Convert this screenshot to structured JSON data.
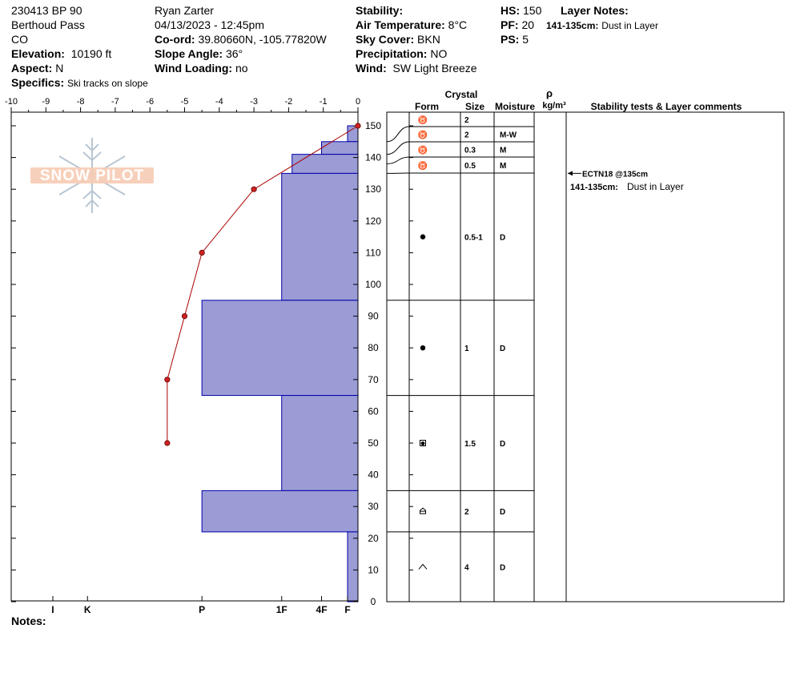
{
  "header": {
    "pit_name": "230413 BP 90",
    "location": "Berthoud Pass",
    "state": "CO",
    "elevation_label": "Elevation:",
    "elevation_value": "10190 ft",
    "aspect_label": "Aspect:",
    "aspect_value": "N",
    "specifics_label": "Specifics:",
    "specifics_value": "Ski tracks on slope",
    "observer": "Ryan Zarter",
    "datetime": "04/13/2023 - 12:45pm",
    "coord_label": "Co-ord:",
    "coord_value": "39.80660N, -105.77820W",
    "slope_label": "Slope Angle:",
    "slope_value": "36°",
    "wind_loading_label": "Wind Loading:",
    "wind_loading_value": "no",
    "stability_label": "Stability:",
    "stability_value": "",
    "air_temp_label": "Air Temperature:",
    "air_temp_value": "8°C",
    "sky_label": "Sky Cover:",
    "sky_value": "BKN",
    "precip_label": "Precipitation:",
    "precip_value": "NO",
    "wind_label": "Wind:",
    "wind_value": "SW Light Breeze",
    "hs_label": "HS:",
    "hs_value": "150",
    "pf_label": "PF:",
    "pf_value": "20",
    "ps_label": "PS:",
    "ps_value": "5",
    "layer_notes_label": "Layer Notes:",
    "layer_note_range": "141-135cm:",
    "layer_note_text": "Dust in Layer"
  },
  "logo": {
    "text": "SNOW PILOT"
  },
  "notes_label": "Notes:",
  "table": {
    "crystal_header": "Crystal",
    "form_header": "Form",
    "size_header": "Size",
    "moisture_header": "Moisture",
    "density_symbol": "ρ",
    "density_unit": "kg/m³",
    "comments_header": "Stability tests & Layer comments"
  },
  "comments": [
    {
      "text": "ECTN18 @135cm",
      "depth": 135,
      "arrow": true
    },
    {
      "range": "141-135cm:",
      "text": "Dust in Layer",
      "depth": 131
    }
  ],
  "colors": {
    "hardness_fill": "#9b9bd6",
    "hardness_stroke": "#0000aa",
    "temp_line": "#aa0000",
    "temp_point": "#cc2222"
  },
  "chart_data": {
    "type": "snow-profile",
    "temperature_axis": {
      "label": "",
      "range": [
        -10,
        0
      ],
      "ticks": [
        "-10",
        "-9",
        "-8",
        "-7",
        "-6",
        "-5",
        "-4",
        "-3",
        "-2",
        "-1",
        "0"
      ]
    },
    "height_axis": {
      "label": "",
      "range": [
        0,
        150
      ],
      "ticks": [
        "0",
        "10",
        "20",
        "30",
        "40",
        "50",
        "60",
        "70",
        "80",
        "90",
        "100",
        "110",
        "120",
        "130",
        "140",
        "150"
      ]
    },
    "hardness_scale": [
      "I",
      "K",
      "P",
      "1F",
      "4F",
      "F"
    ],
    "hardness_ticks": [
      {
        "label": "I",
        "value": 8.8
      },
      {
        "label": "K",
        "value": 7.8
      },
      {
        "label": "P",
        "value": 4.5
      },
      {
        "label": "1F",
        "value": 2.2
      },
      {
        "label": "4F",
        "value": 1.05
      },
      {
        "label": "F",
        "value": 0.3
      }
    ],
    "hardness_layers": [
      {
        "top": 150,
        "bottom": 145,
        "value": 0.3
      },
      {
        "top": 145,
        "bottom": 141,
        "value": 1.05
      },
      {
        "top": 141,
        "bottom": 135,
        "value": 1.9
      },
      {
        "top": 135,
        "bottom": 95,
        "value": 2.2
      },
      {
        "top": 95,
        "bottom": 65,
        "value": 4.5
      },
      {
        "top": 65,
        "bottom": 35,
        "value": 2.2
      },
      {
        "top": 35,
        "bottom": 22,
        "value": 4.5
      },
      {
        "top": 22,
        "bottom": 0,
        "value": 0.3
      }
    ],
    "temperature_profile": [
      {
        "height": 150,
        "temp": 0
      },
      {
        "height": 130,
        "temp": -3
      },
      {
        "height": 110,
        "temp": -4.5
      },
      {
        "height": 90,
        "temp": -5
      },
      {
        "height": 70,
        "temp": -5.5
      },
      {
        "height": 50,
        "temp": -5.5
      }
    ],
    "layers": [
      {
        "top": 150,
        "bottom": 145,
        "form": "decomposing",
        "size": "2",
        "moisture": ""
      },
      {
        "top": 145,
        "bottom": 141,
        "form": "decomposing",
        "size": "2",
        "moisture": "M-W"
      },
      {
        "top": 141,
        "bottom": 138,
        "form": "decomposing",
        "size": "0.3",
        "moisture": "M"
      },
      {
        "top": 138,
        "bottom": 135,
        "form": "decomposing",
        "size": "0.5",
        "moisture": "M"
      },
      {
        "top": 135,
        "bottom": 95,
        "form": "rounded",
        "size": "0.5-1",
        "moisture": "D"
      },
      {
        "top": 95,
        "bottom": 65,
        "form": "rounded",
        "size": "1",
        "moisture": "D"
      },
      {
        "top": 65,
        "bottom": 35,
        "form": "mixed",
        "size": "1.5",
        "moisture": "D"
      },
      {
        "top": 35,
        "bottom": 22,
        "form": "faceted",
        "size": "2",
        "moisture": "D"
      },
      {
        "top": 22,
        "bottom": 0,
        "form": "depth-hoar",
        "size": "4",
        "moisture": "D"
      }
    ]
  }
}
